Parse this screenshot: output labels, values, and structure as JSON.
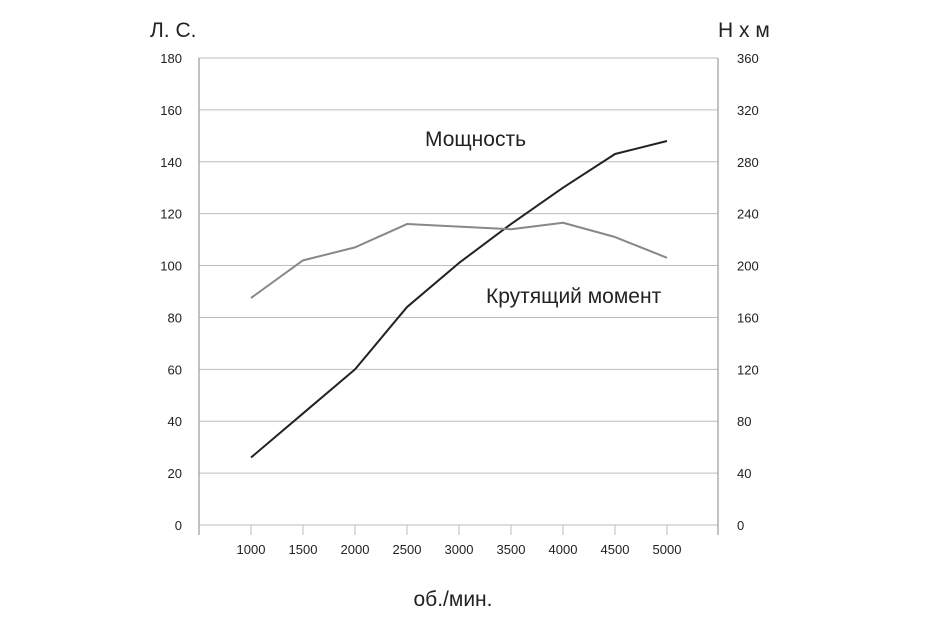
{
  "chart_data": {
    "type": "line",
    "x": [
      1000,
      1500,
      2000,
      2500,
      3000,
      3500,
      4000,
      4500,
      5000
    ],
    "xlabel": "об./мин.",
    "ylabel_left": "Л. С.",
    "ylabel_right": "Н х м",
    "ylim_left": [
      0,
      180
    ],
    "ylim_right": [
      0,
      360
    ],
    "yticks_left": [
      0,
      20,
      40,
      60,
      80,
      100,
      120,
      140,
      160,
      180
    ],
    "yticks_right": [
      0,
      40,
      80,
      120,
      160,
      200,
      240,
      280,
      320,
      360
    ],
    "grid": true,
    "series": [
      {
        "name": "Мощность",
        "axis": "left",
        "color": "#222222",
        "values": [
          26,
          43,
          60,
          84,
          101,
          116,
          130,
          143,
          148
        ]
      },
      {
        "name": "Крутящий момент",
        "axis": "right",
        "color": "#888888",
        "values": [
          175,
          204,
          214,
          232,
          230,
          228,
          233,
          222,
          206
        ]
      }
    ]
  }
}
